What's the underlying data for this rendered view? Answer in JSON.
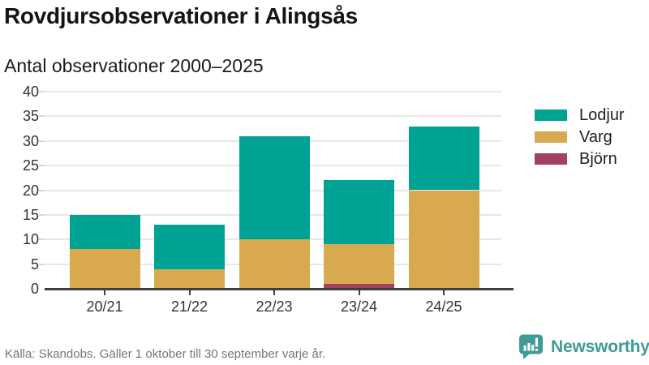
{
  "header": {
    "title": "Rovdjursobservationer i Alingsås",
    "subtitle": "Antal observationer 2000–2025"
  },
  "chart_data": {
    "type": "bar",
    "stacked": true,
    "title": "Rovdjursobservationer i Alingsås",
    "subtitle": "Antal observationer 2000–2025",
    "categories": [
      "20/21",
      "21/22",
      "22/23",
      "23/24",
      "24/25"
    ],
    "series": [
      {
        "name": "Lodjur",
        "color": "#00a294",
        "values": [
          7,
          9,
          21,
          13,
          13
        ]
      },
      {
        "name": "Varg",
        "color": "#d9a950",
        "values": [
          8,
          4,
          10,
          8,
          20
        ]
      },
      {
        "name": "Björn",
        "color": "#a1425f",
        "values": [
          0,
          0,
          0,
          1,
          0
        ]
      }
    ],
    "stack_order_bottom_to_top": [
      "Björn",
      "Varg",
      "Lodjur"
    ],
    "totals": [
      15,
      13,
      31,
      22,
      33
    ],
    "xlabel": "",
    "ylabel": "",
    "ylim": [
      0,
      40
    ],
    "ytick_step": 5,
    "grid": true,
    "legend_position": "right"
  },
  "footer": {
    "source": "Källa: Skandobs. Gäller 1 oktober till 30 september varje år.",
    "brand": "Newsworthy"
  },
  "colors": {
    "brand_teal": "#3f9b97",
    "axis": "#3f3f3f",
    "grid": "#e7e7e7",
    "tick_light": "#d8d8d8",
    "label_text": "#333333",
    "muted_text": "#757575"
  }
}
